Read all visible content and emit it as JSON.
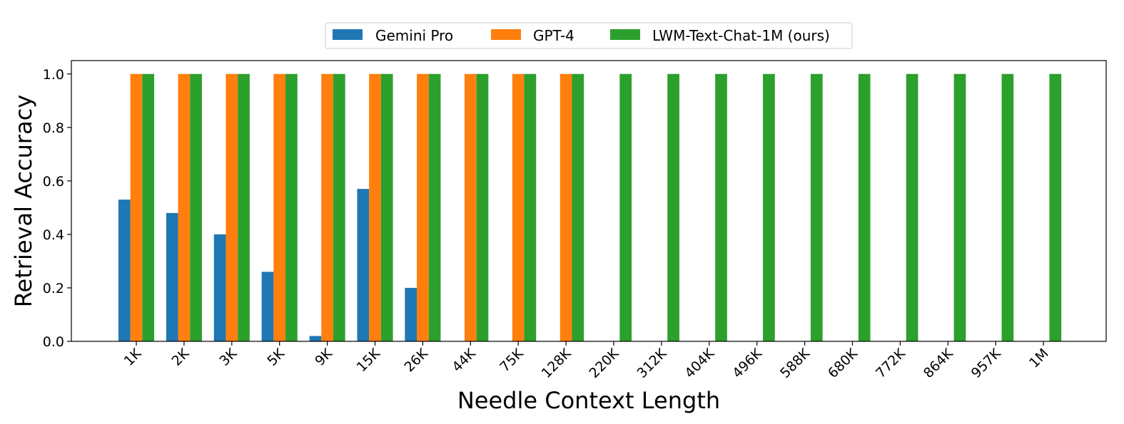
{
  "chart_data": {
    "type": "bar",
    "categories": [
      "1K",
      "2K",
      "3K",
      "5K",
      "9K",
      "15K",
      "26K",
      "44K",
      "75K",
      "128K",
      "220K",
      "312K",
      "404K",
      "496K",
      "588K",
      "680K",
      "772K",
      "864K",
      "957K",
      "1M"
    ],
    "series": [
      {
        "name": "Gemini Pro",
        "color": "#1f77b4",
        "values": [
          0.53,
          0.48,
          0.4,
          0.26,
          0.02,
          0.57,
          0.2,
          null,
          null,
          null,
          null,
          null,
          null,
          null,
          null,
          null,
          null,
          null,
          null,
          null
        ]
      },
      {
        "name": "GPT-4",
        "color": "#ff7f0e",
        "values": [
          1.0,
          1.0,
          1.0,
          1.0,
          1.0,
          1.0,
          1.0,
          1.0,
          1.0,
          1.0,
          null,
          null,
          null,
          null,
          null,
          null,
          null,
          null,
          null,
          null
        ]
      },
      {
        "name": "LWM-Text-Chat-1M (ours)",
        "color": "#2ca02c",
        "values": [
          1.0,
          1.0,
          1.0,
          1.0,
          1.0,
          1.0,
          1.0,
          1.0,
          1.0,
          1.0,
          1.0,
          1.0,
          1.0,
          1.0,
          1.0,
          1.0,
          1.0,
          1.0,
          1.0,
          1.0
        ]
      }
    ],
    "title": "",
    "xlabel": "Needle Context Length",
    "ylabel": "Retrieval Accuracy",
    "ylim": [
      0,
      1.05
    ],
    "yticks": [
      "0.0",
      "0.2",
      "0.4",
      "0.6",
      "0.8",
      "1.0"
    ],
    "grid": false,
    "legend": "top-center"
  }
}
